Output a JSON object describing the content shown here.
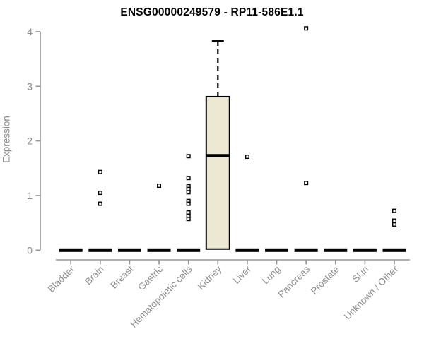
{
  "chart_data": {
    "type": "boxplot",
    "title": "ENSG00000249579 - RP11-586E1.1",
    "xlabel": "",
    "ylabel": "Expression",
    "ylim": [
      0,
      4.2
    ],
    "yticks": [
      0,
      1,
      2,
      3,
      4
    ],
    "grid": false,
    "legend": null,
    "categories": [
      "Bladder",
      "Brain",
      "Breast",
      "Gastric",
      "Hematopoietic cells",
      "Kidney",
      "Liver",
      "Lung",
      "Pancreas",
      "Prostate",
      "Skin",
      "Unknown / Other"
    ],
    "boxes": [
      {
        "category": "Bladder",
        "q1": 0,
        "median": 0,
        "q3": 0,
        "whisker_low": null,
        "whisker_high": null,
        "outliers": []
      },
      {
        "category": "Brain",
        "q1": 0,
        "median": 0,
        "q3": 0,
        "whisker_low": null,
        "whisker_high": null,
        "outliers": [
          1.43,
          1.05,
          0.85
        ]
      },
      {
        "category": "Breast",
        "q1": 0,
        "median": 0,
        "q3": 0,
        "whisker_low": null,
        "whisker_high": null,
        "outliers": []
      },
      {
        "category": "Gastric",
        "q1": 0,
        "median": 0,
        "q3": 0,
        "whisker_low": null,
        "whisker_high": null,
        "outliers": [
          1.18
        ]
      },
      {
        "category": "Hematopoietic cells",
        "q1": 0,
        "median": 0,
        "q3": 0,
        "whisker_low": null,
        "whisker_high": null,
        "outliers": [
          1.72,
          1.32,
          1.17,
          1.12,
          1.06,
          0.9,
          0.85,
          0.69,
          0.63,
          0.57
        ]
      },
      {
        "category": "Kidney",
        "q1": 0.02,
        "median": 1.73,
        "q3": 2.81,
        "whisker_low": null,
        "whisker_high": 3.83,
        "outliers": []
      },
      {
        "category": "Liver",
        "q1": 0,
        "median": 0,
        "q3": 0,
        "whisker_low": null,
        "whisker_high": null,
        "outliers": [
          1.71
        ]
      },
      {
        "category": "Lung",
        "q1": 0,
        "median": 0,
        "q3": 0,
        "whisker_low": null,
        "whisker_high": null,
        "outliers": []
      },
      {
        "category": "Pancreas",
        "q1": 0,
        "median": 0,
        "q3": 0,
        "whisker_low": null,
        "whisker_high": null,
        "outliers": [
          4.06,
          1.23
        ]
      },
      {
        "category": "Prostate",
        "q1": 0,
        "median": 0,
        "q3": 0,
        "whisker_low": null,
        "whisker_high": null,
        "outliers": []
      },
      {
        "category": "Skin",
        "q1": 0,
        "median": 0,
        "q3": 0,
        "whisker_low": null,
        "whisker_high": null,
        "outliers": []
      },
      {
        "category": "Unknown / Other",
        "q1": 0,
        "median": 0,
        "q3": 0,
        "whisker_low": null,
        "whisker_high": null,
        "outliers": [
          0.72,
          0.54,
          0.47
        ]
      }
    ],
    "colors": {
      "background": "#ffffff",
      "box_fill": "#EDE8D1",
      "box_border": "#000000",
      "median": "#000000",
      "zero_bar": "#000000",
      "axis_line": "#969696",
      "tick_text": "#8c8c8c",
      "title_text": "#000000",
      "outlier_fill": "#ffffff",
      "outlier_border": "#000000"
    }
  }
}
